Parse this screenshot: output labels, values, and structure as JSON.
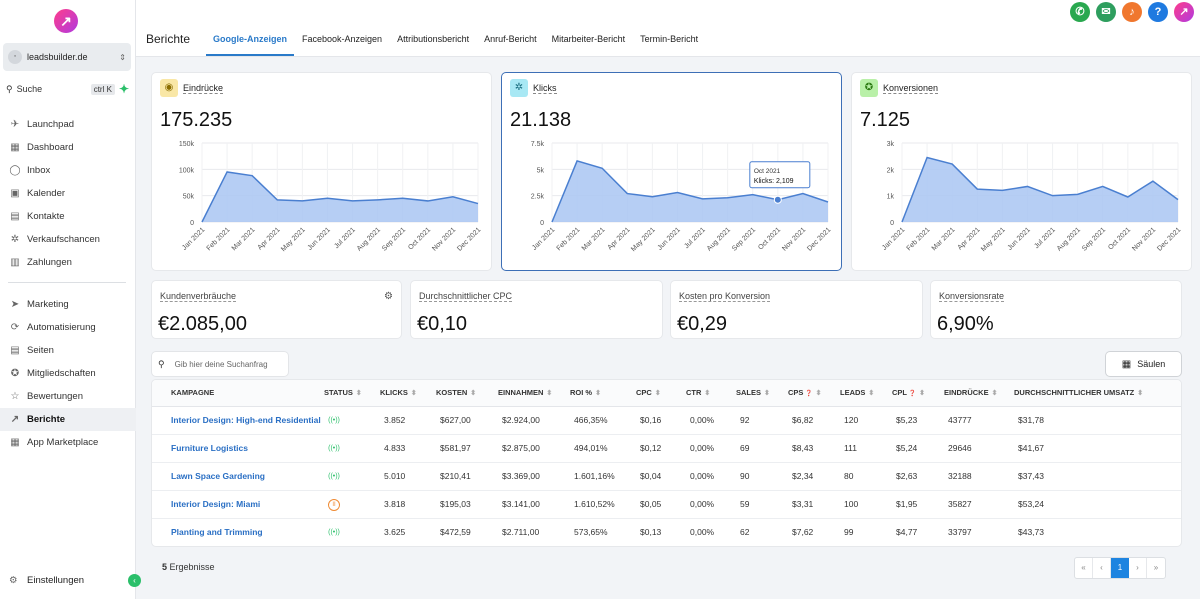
{
  "sidebar": {
    "account": "leadsbuilder.de",
    "search": {
      "label": "Suche",
      "shortcut": "ctrl K"
    },
    "items": [
      {
        "label": "Launchpad",
        "icon": "rocket-icon"
      },
      {
        "label": "Dashboard",
        "icon": "grid-icon"
      },
      {
        "label": "Inbox",
        "icon": "chat-icon"
      },
      {
        "label": "Kalender",
        "icon": "calendar-icon"
      },
      {
        "label": "Kontakte",
        "icon": "contacts-icon"
      },
      {
        "label": "Verkaufschancen",
        "icon": "opportunities-icon"
      },
      {
        "label": "Zahlungen",
        "icon": "payments-icon"
      }
    ],
    "items2": [
      {
        "label": "Marketing",
        "icon": "send-icon"
      },
      {
        "label": "Automatisierung",
        "icon": "automation-icon"
      },
      {
        "label": "Seiten",
        "icon": "pages-icon"
      },
      {
        "label": "Mitgliedschaften",
        "icon": "membership-icon"
      },
      {
        "label": "Bewertungen",
        "icon": "star-icon"
      },
      {
        "label": "Berichte",
        "icon": "trend-icon"
      },
      {
        "label": "App Marketplace",
        "icon": "apps-icon"
      }
    ],
    "settings": "Einstellungen"
  },
  "header": {
    "title": "Berichte",
    "tabs": [
      "Google-Anzeigen",
      "Facebook-Anzeigen",
      "Attributionsbericht",
      "Anruf-Bericht",
      "Mitarbeiter-Bericht",
      "Termin-Bericht"
    ],
    "active_tab": "Google-Anzeigen"
  },
  "metrics": {
    "eindruecke": {
      "label": "Eindrücke",
      "value": "175.235"
    },
    "klicks": {
      "label": "Klicks",
      "value": "21.138",
      "tooltip_date": "Oct 2021",
      "tooltip_text": "Klicks: 2,109"
    },
    "konversionen": {
      "label": "Konversionen",
      "value": "7.125"
    }
  },
  "chart_data": [
    {
      "type": "area",
      "title": "Eindrücke",
      "x": [
        "Jan 2021",
        "Feb 2021",
        "Mar 2021",
        "Apr 2021",
        "May 2021",
        "Jun 2021",
        "Jul 2021",
        "Aug 2021",
        "Sep 2021",
        "Oct 2021",
        "Nov 2021",
        "Dec 2021"
      ],
      "values": [
        0,
        95000,
        88000,
        42000,
        40000,
        45000,
        40000,
        42000,
        45000,
        40000,
        48000,
        35000
      ],
      "yticks": [
        "150k",
        "100k",
        "50k",
        "0"
      ],
      "ylim": [
        0,
        150000
      ]
    },
    {
      "type": "area",
      "title": "Klicks",
      "x": [
        "Jan 2021",
        "Feb 2021",
        "Mar 2021",
        "Apr 2021",
        "May 2021",
        "Jun 2021",
        "Jul 2021",
        "Aug 2021",
        "Sep 2021",
        "Oct 2021",
        "Nov 2021",
        "Dec 2021"
      ],
      "values": [
        0,
        5800,
        5100,
        2700,
        2400,
        2800,
        2200,
        2300,
        2600,
        2109,
        2700,
        1900
      ],
      "yticks": [
        "7.5k",
        "5k",
        "2.5k",
        "0"
      ],
      "ylim": [
        0,
        7500
      ]
    },
    {
      "type": "area",
      "title": "Konversionen",
      "x": [
        "Jan 2021",
        "Feb 2021",
        "Mar 2021",
        "Apr 2021",
        "May 2021",
        "Jun 2021",
        "Jul 2021",
        "Aug 2021",
        "Sep 2021",
        "Oct 2021",
        "Nov 2021",
        "Dec 2021"
      ],
      "values": [
        0,
        2450,
        2200,
        1250,
        1200,
        1350,
        1000,
        1050,
        1350,
        950,
        1550,
        850
      ],
      "yticks": [
        "3k",
        "2k",
        "1k",
        "0"
      ],
      "ylim": [
        0,
        3000
      ]
    }
  ],
  "kpis": [
    {
      "label": "Kundenverbräuche",
      "value": "€2.085,00"
    },
    {
      "label": "Durchschnittlicher CPC",
      "value": "€0,10"
    },
    {
      "label": "Kosten pro Konversion",
      "value": "€0,29"
    },
    {
      "label": "Konversionsrate",
      "value": "6,90%"
    }
  ],
  "table": {
    "search_placeholder": "Gib hier deine Suchanfrag",
    "columns_button": "Säulen",
    "headers": [
      "KAMPAGNE",
      "STATUS",
      "KLICKS",
      "KOSTEN",
      "EINNAHMEN",
      "ROI %",
      "CPC",
      "CTR",
      "SALES",
      "CPS",
      "LEADS",
      "CPL",
      "EINDRÜCKE",
      "DURCHSCHNITTLICHER UMSATZ"
    ],
    "rows": [
      {
        "name": "Interior Design: High-end Residential",
        "status": "active",
        "cells": [
          "3.852",
          "$627,00",
          "$2.924,00",
          "466,35%",
          "$0,16",
          "0,00%",
          "92",
          "$6,82",
          "120",
          "$5,23",
          "43777",
          "$31,78"
        ]
      },
      {
        "name": "Furniture Logistics",
        "status": "active",
        "cells": [
          "4.833",
          "$581,97",
          "$2.875,00",
          "494,01%",
          "$0,12",
          "0,00%",
          "69",
          "$8,43",
          "111",
          "$5,24",
          "29646",
          "$41,67"
        ]
      },
      {
        "name": "Lawn Space Gardening",
        "status": "active",
        "cells": [
          "5.010",
          "$210,41",
          "$3.369,00",
          "1.601,16%",
          "$0,04",
          "0,00%",
          "90",
          "$2,34",
          "80",
          "$2,63",
          "32188",
          "$37,43"
        ]
      },
      {
        "name": "Interior Design: Miami",
        "status": "paused",
        "cells": [
          "3.818",
          "$195,03",
          "$3.141,00",
          "1.610,52%",
          "$0,05",
          "0,00%",
          "59",
          "$3,31",
          "100",
          "$1,95",
          "35827",
          "$53,24"
        ]
      },
      {
        "name": "Planting and Trimming",
        "status": "active",
        "cells": [
          "3.625",
          "$472,59",
          "$2.711,00",
          "573,65%",
          "$0,13",
          "0,00%",
          "62",
          "$7,62",
          "99",
          "$4,77",
          "33797",
          "$43,73"
        ]
      }
    ],
    "result_count": "5",
    "result_label": "Ergebnisse",
    "page": "1"
  },
  "colors": {
    "accent": "#2a7ac9",
    "chart_fill": "#a9c6f2",
    "chart_line": "#4a7fd0",
    "active_status": "#2bbf6a",
    "paused_status": "#ef8b34"
  }
}
